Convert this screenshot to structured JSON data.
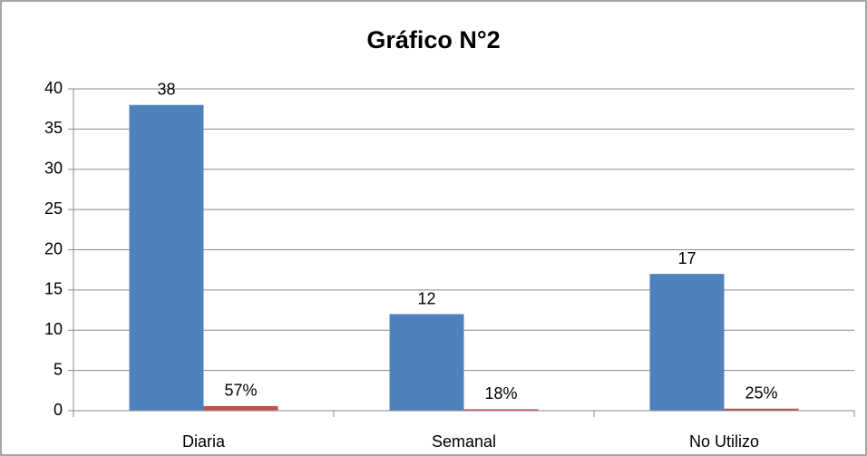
{
  "chart_data": {
    "type": "bar",
    "title": "Gráfico N°2",
    "categories": [
      "Diaria",
      "Semanal",
      "No Utilizo"
    ],
    "series": [
      {
        "color": "#4f81bd",
        "values": [
          38,
          12,
          17
        ]
      },
      {
        "color": "#c0504d",
        "values": [
          0.57,
          0.18,
          0.25
        ],
        "value_labels": [
          "57%",
          "18%",
          "25%"
        ]
      }
    ],
    "ylim": [
      0,
      40
    ],
    "yticks": [
      0,
      5,
      10,
      15,
      20,
      25,
      30,
      35,
      40
    ],
    "grid": true
  }
}
